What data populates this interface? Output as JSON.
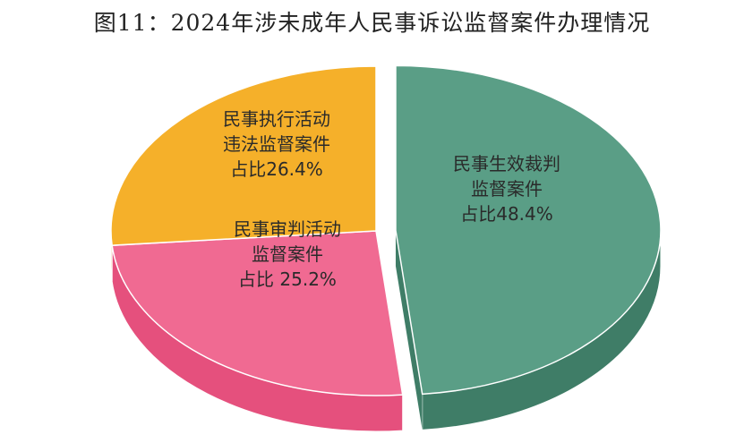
{
  "title": "图11：2024年涉未成年人民事诉讼监督案件办理情况",
  "chart_data": {
    "type": "pie",
    "title": "图11：2024年涉未成年人民事诉讼监督案件办理情况",
    "slices": [
      {
        "name": "民事生效裁判监督案件",
        "value": 48.4,
        "label_lines": [
          "民事生效裁判",
          "监督案件",
          "占比48.4%"
        ],
        "color": "#5a9e86",
        "side_color": "#3f7d67",
        "exploded": true
      },
      {
        "name": "民事审判活动监督案件",
        "value": 25.2,
        "label_lines": [
          "民事审判活动",
          "监督案件",
          "占比 25.2%"
        ],
        "color": "#f06a92",
        "side_color": "#e5507d",
        "exploded": false
      },
      {
        "name": "民事执行活动违法监督案件",
        "value": 26.4,
        "label_lines": [
          "民事执行活动",
          "违法监督案件",
          "占比26.4%"
        ],
        "color": "#f5b02a",
        "side_color": "#d9941a",
        "exploded": false
      }
    ],
    "legend": "none",
    "style": "3d-exploded"
  }
}
